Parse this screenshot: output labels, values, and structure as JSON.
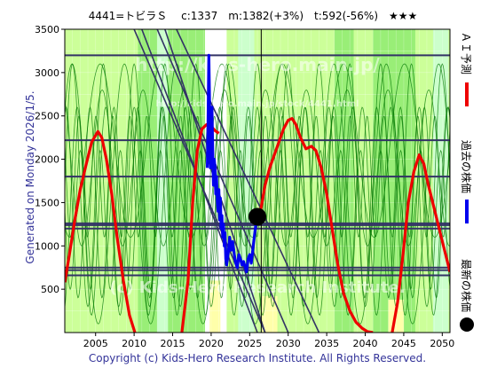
{
  "header": {
    "title": "4441=トビラＳ　 c:1337　m:1382(+3%)　t:592(-56%)　★★★"
  },
  "side_left": "Generated on Monday 2026/1/5.",
  "legend": {
    "ai_forecast": "ＡＩ予測",
    "past_price": "過去の株価",
    "latest_price": "最新の株価"
  },
  "watermark": {
    "line1": "http://kids-hero.main.jp/",
    "line2": "http://kids-hero.main.jp/stock/4441.html",
    "line3": "(c) Kids-Hero Research Institute."
  },
  "footer": {
    "copyright": "Copyright (c) Kids-Hero Research Institute. All Rights Reserved."
  },
  "colors": {
    "forecast": "#ee0000",
    "past": "#0000ee",
    "latest_marker": "#000000",
    "band_light": "#ccff99",
    "band_mid": "#99ee77",
    "band_white": "#ffffff",
    "band_cyan": "#ccffcc",
    "band_yellow": "#ffffaa",
    "thin_green": "#007700",
    "navy_lines": "#333366",
    "frame": "#000000",
    "copyright_text": "#333399",
    "side_text": "#333399"
  },
  "chart_data": {
    "type": "line",
    "title": "4441=トビラＳ　 c:1337　m:1382(+3%)　t:592(-56%)　★★★",
    "xlabel": "",
    "ylabel": "",
    "xlim": [
      2001,
      2051
    ],
    "ylim": [
      0,
      3500
    ],
    "xticks": [
      2005,
      2010,
      2015,
      2020,
      2025,
      2030,
      2035,
      2040,
      2045,
      2050
    ],
    "yticks": [
      500,
      1000,
      1500,
      2000,
      2500,
      3000,
      3500
    ],
    "grid": true,
    "current_value": 1337,
    "current_x": 2026.0,
    "horizontal_levels": [
      3200,
      2220,
      1800,
      1260,
      1240,
      1200,
      750,
      720,
      660
    ],
    "vertical_marker_x": 2026.5,
    "trend_lines": [
      {
        "x1": 2013.0,
        "y1": 3500,
        "x2": 2030.0,
        "y2": 0
      },
      {
        "x1": 2014.0,
        "y1": 3500,
        "x2": 2027.0,
        "y2": 0
      },
      {
        "x1": 2011.0,
        "y1": 3500,
        "x2": 2026.0,
        "y2": 0
      },
      {
        "x1": 2015.5,
        "y1": 3500,
        "x2": 2034.0,
        "y2": 0
      },
      {
        "x1": 2010.0,
        "y1": 3500,
        "x2": 2027.0,
        "y2": 0
      }
    ],
    "series": [
      {
        "name": "ＡＩ予測",
        "color": "#ee0000",
        "x": [
          2001.0,
          2001.6,
          2002.3,
          2003.0,
          2003.8,
          2004.5,
          2005.3,
          2005.8,
          2006.4,
          2007.1,
          2007.8,
          2008.6,
          2009.4,
          2010.1,
          2016.2,
          2017.0,
          2017.6,
          2018.2,
          2018.8,
          2019.4,
          2020.0,
          2020.5,
          2021.0,
          2026.4,
          2027.0,
          2027.6,
          2028.2,
          2028.8,
          2029.4,
          2030.0,
          2030.5,
          2031.0,
          2031.6,
          2032.3,
          2033.0,
          2033.6,
          2034.3,
          2035.0,
          2035.7,
          2036.4,
          2037.2,
          2038.0,
          2038.8,
          2039.6,
          2040.3,
          2041.0,
          2043.5,
          2044.2,
          2044.9,
          2045.6,
          2046.3,
          2047.0,
          2047.6,
          2048.2,
          2048.9,
          2049.6,
          2050.3,
          2051.0
        ],
        "values": [
          580,
          900,
          1300,
          1650,
          1950,
          2200,
          2320,
          2250,
          2000,
          1600,
          1100,
          600,
          200,
          0,
          0,
          600,
          1500,
          2100,
          2350,
          2400,
          2380,
          2330,
          2300,
          1400,
          1700,
          1900,
          2050,
          2200,
          2350,
          2450,
          2470,
          2400,
          2250,
          2120,
          2150,
          2100,
          1900,
          1600,
          1200,
          800,
          450,
          250,
          120,
          50,
          10,
          0,
          0,
          350,
          900,
          1500,
          1850,
          2050,
          1950,
          1700,
          1450,
          1200,
          950,
          700
        ]
      },
      {
        "name": "過去の株価",
        "color": "#0000ee",
        "x": [
          2019.5,
          2019.6,
          2019.7,
          2019.8,
          2019.9,
          2020.0,
          2020.1,
          2020.2,
          2020.3,
          2020.4,
          2020.5,
          2020.6,
          2020.7,
          2020.8,
          2020.9,
          2021.0,
          2021.1,
          2021.2,
          2021.3,
          2021.4,
          2021.5,
          2021.6,
          2021.7,
          2021.8,
          2021.9,
          2022.0,
          2022.2,
          2022.4,
          2022.6,
          2022.8,
          2023.0,
          2023.2,
          2023.4,
          2023.6,
          2023.8,
          2024.0,
          2024.2,
          2024.4,
          2024.6,
          2024.8,
          2025.0,
          2025.2,
          2025.4,
          2025.6,
          2025.8,
          2026.0
        ],
        "values": [
          1900,
          2400,
          3200,
          2600,
          1900,
          2200,
          2600,
          2100,
          1700,
          2000,
          1900,
          1600,
          1800,
          1500,
          1400,
          1650,
          1300,
          1550,
          1200,
          1350,
          1100,
          1250,
          1000,
          1150,
          850,
          780,
          900,
          1100,
          950,
          1050,
          900,
          800,
          750,
          900,
          850,
          780,
          820,
          760,
          700,
          850,
          900,
          800,
          950,
          1100,
          1250,
          1337
        ]
      }
    ],
    "green_cycles": [
      {
        "amp": 1400,
        "mid": 1700,
        "period": 4.0,
        "phase": 0.0
      },
      {
        "amp": 1100,
        "mid": 1500,
        "period": 3.1,
        "phase": 1.2
      },
      {
        "amp": 900,
        "mid": 1900,
        "period": 5.3,
        "phase": 2.1
      },
      {
        "amp": 1500,
        "mid": 1600,
        "period": 6.8,
        "phase": 0.7
      },
      {
        "amp": 800,
        "mid": 1300,
        "period": 2.6,
        "phase": 3.0
      },
      {
        "amp": 1000,
        "mid": 2100,
        "period": 7.9,
        "phase": 4.2
      },
      {
        "amp": 1200,
        "mid": 1400,
        "period": 3.7,
        "phase": 5.1
      },
      {
        "amp": 700,
        "mid": 1800,
        "period": 2.2,
        "phase": 2.6
      }
    ],
    "bands": [
      {
        "x1": 2001.0,
        "x2": 2010.5,
        "kind": "light"
      },
      {
        "x1": 2010.5,
        "x2": 2013.0,
        "kind": "mid"
      },
      {
        "x1": 2013.0,
        "x2": 2014.4,
        "kind": "cyan"
      },
      {
        "x1": 2014.4,
        "x2": 2019.2,
        "kind": "mid"
      },
      {
        "x1": 2019.2,
        "x2": 2022.0,
        "kind": "white"
      },
      {
        "x1": 2022.0,
        "x2": 2023.5,
        "kind": "light"
      },
      {
        "x1": 2023.5,
        "x2": 2025.6,
        "kind": "cyan"
      },
      {
        "x1": 2025.6,
        "x2": 2036.0,
        "kind": "light"
      },
      {
        "x1": 2036.0,
        "x2": 2038.5,
        "kind": "mid"
      },
      {
        "x1": 2038.5,
        "x2": 2041.0,
        "kind": "light"
      },
      {
        "x1": 2041.0,
        "x2": 2046.5,
        "kind": "mid"
      },
      {
        "x1": 2046.5,
        "x2": 2048.8,
        "kind": "light"
      },
      {
        "x1": 2048.8,
        "x2": 2050.8,
        "kind": "cyan"
      },
      {
        "x1": 2050.8,
        "x2": 2051.0,
        "kind": "light"
      }
    ],
    "yellow_patches": [
      {
        "x1": 2019.8,
        "x2": 2021.2,
        "y1": 0,
        "y2": 600
      },
      {
        "x1": 2026.6,
        "x2": 2028.6,
        "y1": 0,
        "y2": 420
      },
      {
        "x1": 2043.0,
        "x2": 2045.0,
        "y1": 0,
        "y2": 380
      }
    ]
  }
}
